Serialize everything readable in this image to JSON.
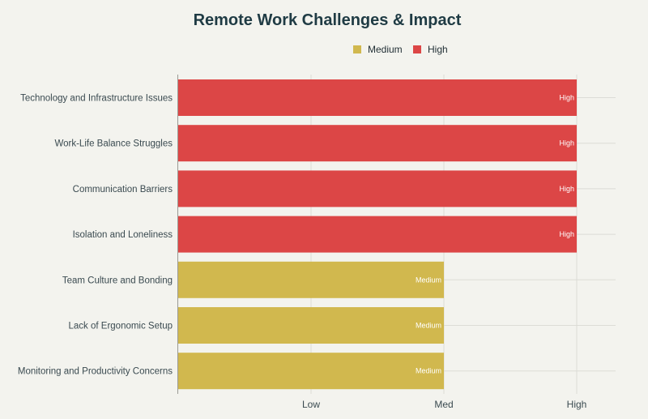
{
  "chart_data": {
    "type": "bar",
    "orientation": "horizontal",
    "title": "Remote Work Challenges & Impact",
    "legend": {
      "placement": "top-center",
      "items": [
        {
          "name": "Medium",
          "color": "#d1b84e"
        },
        {
          "name": "High",
          "color": "#dc4646"
        }
      ]
    },
    "x_axis": {
      "ticks": [
        {
          "value": 1,
          "label": "Low"
        },
        {
          "value": 2,
          "label": "Med"
        },
        {
          "value": 3,
          "label": "High"
        }
      ],
      "range": [
        0,
        3.3
      ]
    },
    "grid": true,
    "categories": [
      "Technology and Infrastructure Issues",
      "Work-Life Balance Struggles",
      "Communication Barriers",
      "Isolation and Loneliness",
      "Team Culture and Bonding",
      "Lack of Ergonomic Setup",
      "Monitoring and Productivity Concerns"
    ],
    "values": [
      3,
      3,
      3,
      3,
      2,
      2,
      2
    ],
    "levels": [
      "High",
      "High",
      "High",
      "High",
      "Medium",
      "Medium",
      "Medium"
    ],
    "bar_labels": [
      "High",
      "High",
      "High",
      "High",
      "Medium",
      "Medium",
      "Medium"
    ]
  }
}
